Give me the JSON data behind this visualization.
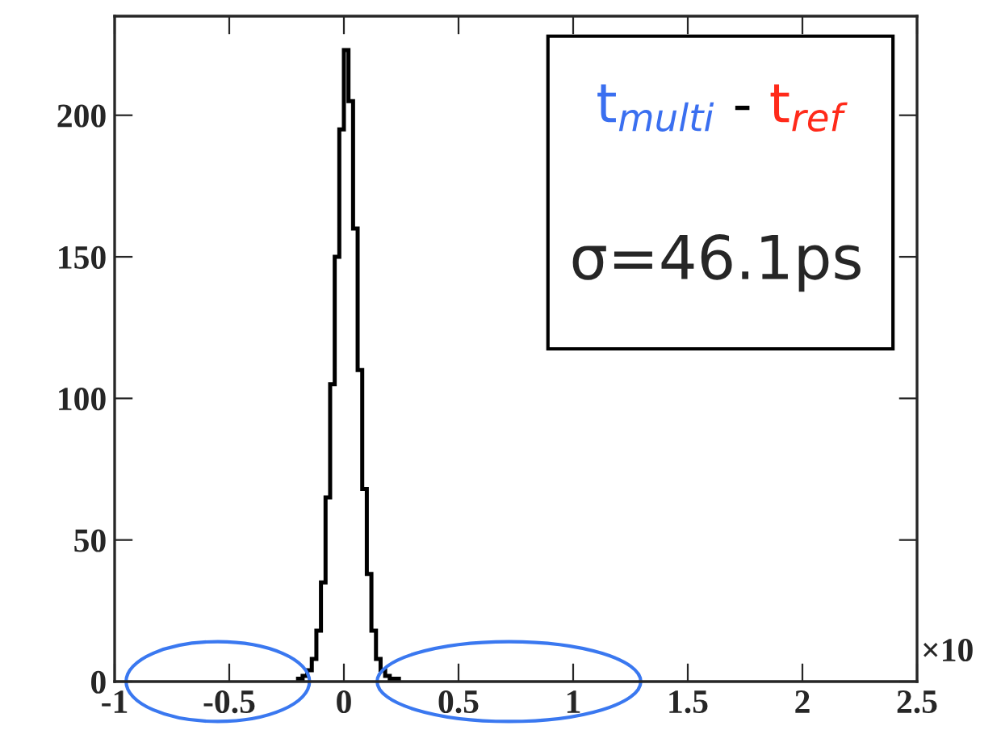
{
  "chart_data": {
    "type": "histogram",
    "bins": [
      -0.2,
      -0.18,
      -0.16,
      -0.14,
      -0.12,
      -0.1,
      -0.08,
      -0.06,
      -0.04,
      -0.02,
      0,
      0.02,
      0.04,
      0.06,
      0.08,
      0.1,
      0.12,
      0.14,
      0.16,
      0.18,
      0.2,
      0.22,
      0.24
    ],
    "values": [
      1,
      2,
      4,
      8,
      18,
      35,
      65,
      105,
      150,
      195,
      223,
      205,
      160,
      110,
      68,
      38,
      18,
      8,
      4,
      2,
      1,
      1
    ],
    "color": "#000000",
    "xlim": [
      -1,
      2.5
    ],
    "xticks": [
      {
        "value": -1,
        "label": "-1"
      },
      -0.5,
      0,
      0.5,
      1,
      1.5,
      2,
      2.5
    ],
    "ylim": [
      0,
      235
    ],
    "yticks": [
      0,
      50,
      100,
      150,
      200
    ],
    "grid": false,
    "annotations": [
      "t$_{multi}$ - t$_{ref}$",
      "σ=46.1ps",
      "×10"
    ]
  }
}
